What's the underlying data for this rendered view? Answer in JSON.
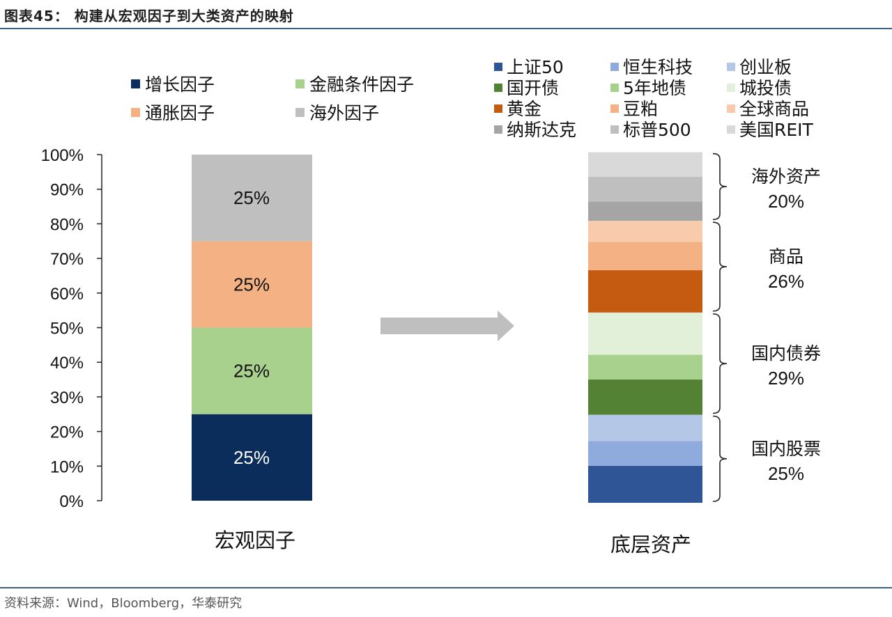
{
  "figure": {
    "title": "图表45：  构建从宏观因子到大类资产的映射",
    "source": "资料来源：Wind，Bloomberg，华泰研究"
  },
  "chart_data": [
    {
      "type": "bar",
      "stacked": true,
      "category": "宏观因子",
      "yaxis": {
        "ticks": [
          "0%",
          "10%",
          "20%",
          "30%",
          "40%",
          "50%",
          "60%",
          "70%",
          "80%",
          "90%",
          "100%"
        ],
        "ylim": [
          0,
          100
        ]
      },
      "legend": {
        "placement": "top"
      },
      "series": [
        {
          "name": "增长因子",
          "value": 25,
          "label": "25%",
          "color": "#0b2d5b",
          "label_color": "#ffffff"
        },
        {
          "name": "金融条件因子",
          "value": 25,
          "label": "25%",
          "color": "#a9d18e",
          "label_color": "#111111"
        },
        {
          "name": "通胀因子",
          "value": 25,
          "label": "25%",
          "color": "#f4b183",
          "label_color": "#111111"
        },
        {
          "name": "海外因子",
          "value": 25,
          "label": "25%",
          "color": "#bfbfbf",
          "label_color": "#111111"
        }
      ]
    },
    {
      "type": "bar",
      "stacked": true,
      "category": "底层资产",
      "ylim": [
        0,
        100
      ],
      "legend": {
        "placement": "top",
        "columns": 3
      },
      "series": [
        {
          "name": "上证50",
          "value": 10.5,
          "color": "#2f5597"
        },
        {
          "name": "恒生科技",
          "value": 7,
          "color": "#8faadc"
        },
        {
          "name": "创业板",
          "value": 7.5,
          "color": "#b4c7e7"
        },
        {
          "name": "国开债",
          "value": 10,
          "color": "#548235"
        },
        {
          "name": "5年地债",
          "value": 7,
          "color": "#a9d18e"
        },
        {
          "name": "城投债",
          "value": 12,
          "color": "#e2f0d9"
        },
        {
          "name": "黄金",
          "value": 12,
          "color": "#c55a11"
        },
        {
          "name": "豆粕",
          "value": 8,
          "color": "#f4b183"
        },
        {
          "name": "全球商品",
          "value": 6,
          "color": "#f8cbad"
        },
        {
          "name": "纳斯达克",
          "value": 5.5,
          "color": "#a5a5a5"
        },
        {
          "name": "标普500",
          "value": 7,
          "color": "#bfbfbf"
        },
        {
          "name": "美国REIT",
          "value": 7,
          "color": "#d9d9d9"
        }
      ],
      "groups": [
        {
          "name": "国内股票",
          "pct": "25%",
          "members": [
            "上证50",
            "恒生科技",
            "创业板"
          ]
        },
        {
          "name": "国内债券",
          "pct": "29%",
          "members": [
            "国开债",
            "5年地债",
            "城投债"
          ]
        },
        {
          "name": "商品",
          "pct": "26%",
          "members": [
            "黄金",
            "豆粕",
            "全球商品"
          ]
        },
        {
          "name": "海外资产",
          "pct": "20%",
          "members": [
            "纳斯达克",
            "标普500",
            "美国REIT"
          ]
        }
      ]
    }
  ],
  "arrow": {
    "color": "#bfbfbf"
  }
}
